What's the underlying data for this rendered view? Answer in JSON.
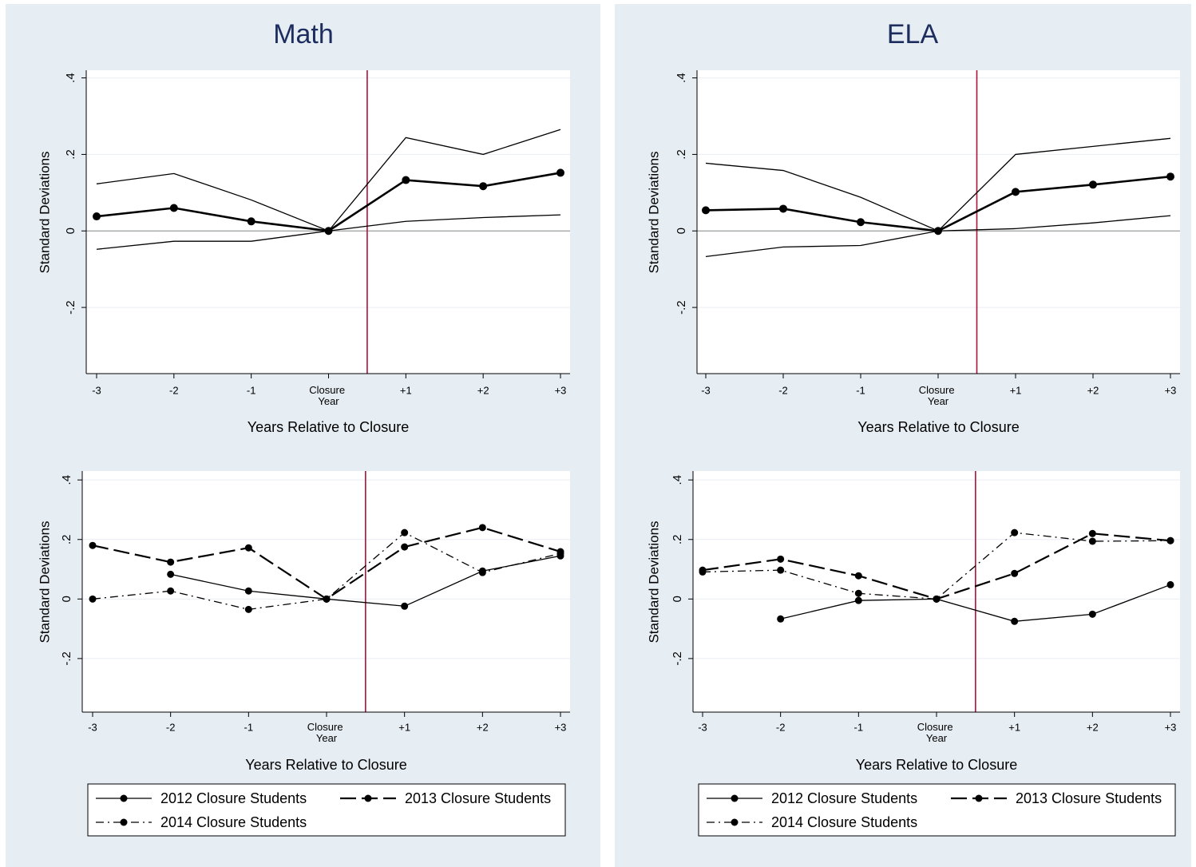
{
  "chart_data": [
    {
      "type": "line",
      "title": "Math",
      "ylabel": "Standard Deviations",
      "xlabel": "Years Relative to Closure",
      "categories": [
        "-3",
        "-2",
        "-1",
        "Closure Year",
        "+1",
        "+2",
        "+3"
      ],
      "ylim": [
        -0.373,
        0.42
      ],
      "yticks": [
        {
          "value": 0.4,
          "label": ".4"
        },
        {
          "value": 0.2,
          "label": ".2"
        },
        0,
        {
          "value": -0.2,
          "label": "-.2"
        }
      ],
      "grid": true,
      "hline": 0,
      "vline": 3.5,
      "vline_color": "#b0103a",
      "series": [
        {
          "color": "#000000",
          "dash": "solid",
          "weight": "thin",
          "markers": false,
          "values": [
            0.123,
            0.15,
            0.081,
            0,
            0.244,
            0.2,
            0.265
          ]
        },
        {
          "color": "#000000",
          "dash": "solid",
          "weight": "thick",
          "markers": true,
          "values": [
            0.038,
            0.06,
            0.025,
            0,
            0.133,
            0.117,
            0.152
          ]
        },
        {
          "color": "#000000",
          "dash": "solid",
          "weight": "thin",
          "markers": false,
          "values": [
            -0.048,
            -0.027,
            -0.027,
            0,
            0.025,
            0.035,
            0.042
          ]
        }
      ]
    },
    {
      "type": "line",
      "ylabel": "Standard Deviations",
      "xlabel": "Years Relative to Closure",
      "categories": [
        "-3",
        "-2",
        "-1",
        "Closure Year",
        "+1",
        "+2",
        "+3"
      ],
      "ylim": [
        -0.38,
        0.43
      ],
      "yticks": [
        {
          "value": 0.4,
          "label": ".4"
        },
        {
          "value": 0.2,
          "label": ".2"
        },
        0,
        {
          "value": -0.2,
          "label": "-.2"
        }
      ],
      "grid": true,
      "vline": 3.5,
      "vline_color": "#b0103a",
      "legend": "bottom",
      "series": [
        {
          "name": "2012 Closure Students",
          "color": "#000000",
          "dash": "solid",
          "weight": "thin",
          "markers": true,
          "values": [
            null,
            0.083,
            0.027,
            0,
            -0.024,
            0.094,
            0.145
          ]
        },
        {
          "name": "2013 Closure Students",
          "color": "#000000",
          "dash": "longdash",
          "weight": "medium",
          "markers": true,
          "values": [
            0.18,
            0.124,
            0.172,
            0,
            0.175,
            0.24,
            0.159
          ]
        },
        {
          "name": "2014 Closure Students",
          "color": "#000000",
          "dash": "dashdot",
          "weight": "thin",
          "markers": true,
          "values": [
            0,
            0.027,
            -0.035,
            0,
            0.223,
            0.089,
            0.153
          ]
        }
      ]
    },
    {
      "type": "line",
      "title": "ELA",
      "ylabel": "Standard Deviations",
      "xlabel": "Years Relative to Closure",
      "categories": [
        "-3",
        "-2",
        "-1",
        "Closure Year",
        "+1",
        "+2",
        "+3"
      ],
      "ylim": [
        -0.373,
        0.42
      ],
      "yticks": [
        {
          "value": 0.4,
          "label": ".4"
        },
        {
          "value": 0.2,
          "label": ".2"
        },
        0,
        {
          "value": -0.2,
          "label": "-.2"
        }
      ],
      "grid": true,
      "hline": 0,
      "vline": 3.5,
      "vline_color": "#b0103a",
      "series": [
        {
          "color": "#000000",
          "dash": "solid",
          "weight": "thin",
          "markers": false,
          "values": [
            0.177,
            0.158,
            0.088,
            0,
            0.2,
            0.221,
            0.242
          ]
        },
        {
          "color": "#000000",
          "dash": "solid",
          "weight": "thick",
          "markers": true,
          "values": [
            0.054,
            0.058,
            0.023,
            0,
            0.102,
            0.121,
            0.142
          ]
        },
        {
          "color": "#000000",
          "dash": "solid",
          "weight": "thin",
          "markers": false,
          "values": [
            -0.067,
            -0.042,
            -0.038,
            0,
            0.006,
            0.021,
            0.04
          ]
        }
      ]
    },
    {
      "type": "line",
      "ylabel": "Standard Deviations",
      "xlabel": "Years Relative to Closure",
      "categories": [
        "-3",
        "-2",
        "-1",
        "Closure Year",
        "+1",
        "+2",
        "+3"
      ],
      "ylim": [
        -0.38,
        0.43
      ],
      "yticks": [
        {
          "value": 0.4,
          "label": ".4"
        },
        {
          "value": 0.2,
          "label": ".2"
        },
        0,
        {
          "value": -0.2,
          "label": "-.2"
        }
      ],
      "grid": true,
      "vline": 3.5,
      "vline_color": "#b0103a",
      "legend": "bottom",
      "series": [
        {
          "name": "2012 Closure Students",
          "color": "#000000",
          "dash": "solid",
          "weight": "thin",
          "markers": true,
          "values": [
            null,
            -0.067,
            -0.005,
            0,
            -0.075,
            -0.051,
            0.048
          ]
        },
        {
          "name": "2013 Closure Students",
          "color": "#000000",
          "dash": "longdash",
          "weight": "medium",
          "markers": true,
          "values": [
            0.097,
            0.134,
            0.078,
            0,
            0.086,
            0.22,
            0.196
          ]
        },
        {
          "name": "2014 Closure Students",
          "color": "#000000",
          "dash": "dashdot",
          "weight": "thin",
          "markers": true,
          "values": [
            0.091,
            0.097,
            0.019,
            0,
            0.223,
            0.194,
            0.196
          ]
        }
      ]
    }
  ]
}
